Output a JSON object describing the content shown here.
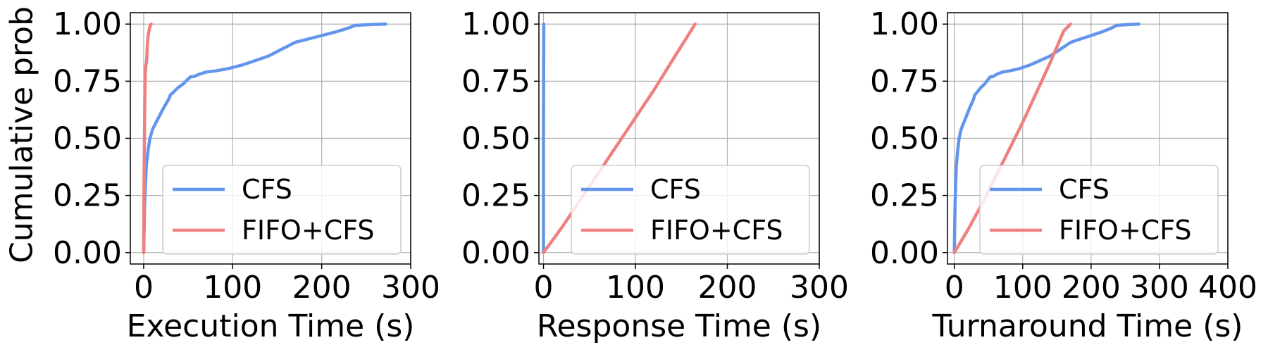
{
  "colors": {
    "CFS": "#6495ED",
    "FIFO+CFS": "#F08080"
  },
  "chart_data": [
    {
      "type": "line",
      "title": "",
      "xlabel": "Execution Time (s)",
      "ylabel": "Cumulative prob",
      "xlim": [
        -15,
        300
      ],
      "ylim": [
        -0.05,
        1.05
      ],
      "xticks": [
        0,
        100,
        200,
        300
      ],
      "yticks": [
        0.0,
        0.25,
        0.5,
        0.75,
        1.0
      ],
      "xtick_labels": [
        "0",
        "100",
        "200",
        "300"
      ],
      "ytick_labels": [
        "0.00",
        "0.25",
        "0.50",
        "0.75",
        "1.00"
      ],
      "grid": true,
      "legend_position": "lower-right",
      "series": [
        {
          "name": "CFS",
          "x": [
            0,
            0.5,
            1,
            2,
            3,
            5,
            7,
            10,
            14,
            18,
            22,
            25,
            28,
            30,
            33,
            38,
            45,
            50,
            53,
            56,
            62,
            70,
            80,
            95,
            110,
            125,
            140,
            150,
            155,
            160,
            170,
            185,
            200,
            215,
            228,
            238,
            255,
            272
          ],
          "y": [
            0,
            0.1,
            0.2,
            0.3,
            0.38,
            0.45,
            0.5,
            0.54,
            0.57,
            0.6,
            0.63,
            0.65,
            0.67,
            0.69,
            0.7,
            0.72,
            0.74,
            0.76,
            0.77,
            0.77,
            0.78,
            0.79,
            0.795,
            0.805,
            0.82,
            0.84,
            0.86,
            0.88,
            0.89,
            0.9,
            0.92,
            0.935,
            0.95,
            0.965,
            0.98,
            0.995,
            0.998,
            1.0
          ]
        },
        {
          "name": "FIFO+CFS",
          "x": [
            0,
            0.3,
            0.8,
            1.2,
            1.6,
            2,
            2.5,
            3,
            3.5,
            4,
            5,
            6,
            7,
            8.5
          ],
          "y": [
            0,
            0.25,
            0.5,
            0.65,
            0.75,
            0.8,
            0.82,
            0.83,
            0.85,
            0.9,
            0.95,
            0.97,
            0.99,
            1.0
          ]
        }
      ]
    },
    {
      "type": "line",
      "title": "",
      "xlabel": "Response Time (s)",
      "ylabel": "",
      "xlim": [
        -5,
        300
      ],
      "ylim": [
        -0.05,
        1.05
      ],
      "xticks": [
        0,
        100,
        200,
        300
      ],
      "yticks": [
        0.0,
        0.25,
        0.5,
        0.75,
        1.0
      ],
      "xtick_labels": [
        "0",
        "100",
        "200",
        "300"
      ],
      "ytick_labels": [
        "0.00",
        "0.25",
        "0.50",
        "0.75",
        "1.00"
      ],
      "grid": true,
      "legend_position": "lower-right",
      "series": [
        {
          "name": "CFS",
          "x": [
            0,
            0,
            0.3
          ],
          "y": [
            0,
            0.5,
            1.0
          ]
        },
        {
          "name": "FIFO+CFS",
          "x": [
            0,
            20,
            40,
            60,
            80,
            100,
            120,
            140,
            165
          ],
          "y": [
            0,
            0.11,
            0.23,
            0.35,
            0.47,
            0.59,
            0.71,
            0.84,
            1.0
          ]
        }
      ]
    },
    {
      "type": "line",
      "title": "",
      "xlabel": "Turnaround Time (s)",
      "ylabel": "",
      "xlim": [
        -10,
        400
      ],
      "ylim": [
        -0.05,
        1.05
      ],
      "xticks": [
        0,
        100,
        200,
        300,
        400
      ],
      "yticks": [
        0.0,
        0.25,
        0.5,
        0.75,
        1.0
      ],
      "xtick_labels": [
        "0",
        "100",
        "200",
        "300",
        "400"
      ],
      "ytick_labels": [
        "0.00",
        "0.25",
        "0.50",
        "0.75",
        "1.00"
      ],
      "grid": true,
      "legend_position": "lower-right",
      "series": [
        {
          "name": "CFS",
          "x": [
            0,
            0.5,
            1,
            2,
            3,
            5,
            7,
            10,
            14,
            18,
            22,
            25,
            28,
            30,
            33,
            38,
            45,
            50,
            53,
            56,
            62,
            70,
            80,
            95,
            110,
            125,
            140,
            150,
            155,
            160,
            170,
            185,
            200,
            215,
            228,
            238,
            255,
            270
          ],
          "y": [
            0,
            0.1,
            0.2,
            0.3,
            0.38,
            0.45,
            0.5,
            0.54,
            0.57,
            0.6,
            0.63,
            0.65,
            0.67,
            0.69,
            0.7,
            0.72,
            0.74,
            0.76,
            0.77,
            0.77,
            0.78,
            0.79,
            0.795,
            0.805,
            0.82,
            0.84,
            0.86,
            0.88,
            0.89,
            0.9,
            0.92,
            0.935,
            0.95,
            0.965,
            0.98,
            0.995,
            0.998,
            1.0
          ]
        },
        {
          "name": "FIFO+CFS",
          "x": [
            0,
            20,
            40,
            60,
            80,
            100,
            120,
            140,
            160,
            170
          ],
          "y": [
            0,
            0.1,
            0.21,
            0.33,
            0.45,
            0.57,
            0.7,
            0.83,
            0.97,
            1.0
          ]
        }
      ]
    }
  ]
}
